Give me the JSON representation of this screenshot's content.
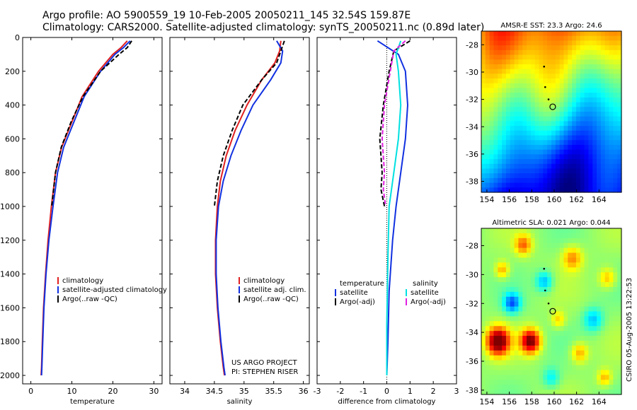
{
  "header": {
    "line1": "Argo profile: AO 5900559_19 10-Feb-2005 20050211_145 32.54S 159.87E",
    "line2": "Climatology: CARS2000. Satellite-adjusted climatology: synTS_20050211.nc (0.89d later)"
  },
  "stamp": "CSIRO 05-Aug-2005 13:22:53",
  "colors": {
    "climatology": "#e02020",
    "satellite": "#1030e0",
    "argo": "#000000",
    "cyan": "#00e0e0",
    "magenta": "#e020e0"
  },
  "chart_data": [
    {
      "type": "line",
      "name": "temperature-panel",
      "xlabel": "temperature",
      "ylabel": "",
      "xlim": [
        -2,
        32
      ],
      "ylim": [
        2050,
        0
      ],
      "xticks": [
        0,
        10,
        20,
        30
      ],
      "yticks": [
        0,
        200,
        400,
        600,
        800,
        1000,
        1200,
        1400,
        1600,
        1800,
        2000
      ],
      "legend": [
        "climatology",
        "satellite-adjusted climatology",
        "Argo(..raw -QC)"
      ],
      "series": [
        {
          "name": "climatology",
          "color": "#e02020",
          "dashed": false,
          "x": [
            23.5,
            22,
            20,
            16.5,
            12.5,
            10,
            7.5,
            6,
            5,
            4.2,
            3.6,
            3.1,
            2.8,
            2.6,
            2.5
          ],
          "y": [
            20,
            60,
            100,
            200,
            350,
            500,
            650,
            800,
            1000,
            1200,
            1400,
            1600,
            1800,
            1950,
            2000
          ]
        },
        {
          "name": "satellite-adjusted climatology",
          "color": "#1030e0",
          "dashed": false,
          "x": [
            24.2,
            22.6,
            20.5,
            17,
            13,
            10.5,
            8,
            6.5,
            5.4,
            4.4,
            3.7,
            3.2,
            2.9,
            2.7,
            2.6
          ],
          "y": [
            20,
            60,
            100,
            200,
            350,
            500,
            650,
            800,
            1000,
            1200,
            1400,
            1600,
            1800,
            1950,
            2000
          ]
        },
        {
          "name": "Argo(..raw -QC)",
          "color": "#000000",
          "dashed": true,
          "x": [
            24.6,
            23.5,
            21.5,
            17,
            12.7,
            9.8,
            7.4,
            6,
            5.1
          ],
          "y": [
            20,
            60,
            100,
            200,
            350,
            500,
            650,
            800,
            1000
          ]
        }
      ]
    },
    {
      "type": "line",
      "name": "salinity-panel",
      "xlabel": "salinity",
      "ylabel": "",
      "xlim": [
        33.75,
        36.1
      ],
      "ylim": [
        2050,
        0
      ],
      "xticks": [
        34,
        34.5,
        35,
        35.5,
        36
      ],
      "xticklabels": [
        "34",
        "34.5",
        "35",
        "35.5",
        "36"
      ],
      "legend": [
        "climatology",
        "satellite adj. clim.",
        "Argo(..raw -QC)"
      ],
      "annotation": [
        "US ARGO PROJECT",
        "PI: STEPHEN RISER"
      ],
      "series": [
        {
          "name": "climatology",
          "color": "#e02020",
          "dashed": false,
          "x": [
            35.62,
            35.6,
            35.52,
            35.3,
            35.05,
            34.85,
            34.7,
            34.6,
            34.55,
            34.52,
            34.52,
            34.55,
            34.6,
            34.65,
            34.67
          ],
          "y": [
            20,
            80,
            150,
            250,
            400,
            550,
            700,
            850,
            1000,
            1200,
            1400,
            1600,
            1800,
            1950,
            2000
          ]
        },
        {
          "name": "satellite adj. clim.",
          "color": "#1030e0",
          "dashed": false,
          "x": [
            35.55,
            35.65,
            35.62,
            35.45,
            35.15,
            34.95,
            34.78,
            34.65,
            34.57,
            34.53,
            34.53,
            34.56,
            34.61,
            34.66,
            34.68
          ],
          "y": [
            20,
            80,
            150,
            250,
            400,
            550,
            700,
            850,
            1000,
            1200,
            1400,
            1600,
            1800,
            1950,
            2000
          ]
        },
        {
          "name": "Argo(..raw -QC)",
          "color": "#000000",
          "dashed": true,
          "x": [
            35.68,
            35.62,
            35.55,
            35.3,
            34.98,
            34.8,
            34.65,
            34.55,
            34.5
          ],
          "y": [
            20,
            80,
            150,
            250,
            400,
            550,
            700,
            850,
            1000
          ]
        }
      ]
    },
    {
      "type": "line",
      "name": "difference-panel",
      "xlabel": "difference from climatology",
      "ylabel": "",
      "xlim": [
        -3,
        3
      ],
      "ylim": [
        2050,
        0
      ],
      "xticks": [
        -3,
        -2,
        -1,
        0,
        1,
        2,
        3
      ],
      "legend_left_title": "temperature",
      "legend_left": [
        "satellite",
        "Argo(-adj)"
      ],
      "legend_right_title": "salinity",
      "legend_right": [
        "satellite",
        "Argo(-adj)"
      ],
      "series": [
        {
          "name": "temperature satellite",
          "color": "#1030e0",
          "dashed": false,
          "x": [
            -0.4,
            0.5,
            0.8,
            0.9,
            0.8,
            0.6,
            0.4,
            0.25,
            0.1,
            0.05,
            0
          ],
          "y": [
            20,
            100,
            200,
            400,
            600,
            800,
            1000,
            1200,
            1500,
            1800,
            2000
          ]
        },
        {
          "name": "temperature Argo(-adj)",
          "color": "#000000",
          "dashed": true,
          "x": [
            1.0,
            0.3,
            0.1,
            -0.15,
            -0.3,
            -0.2,
            -0.25,
            -0.1
          ],
          "y": [
            20,
            80,
            200,
            400,
            600,
            800,
            900,
            1000
          ]
        },
        {
          "name": "salinity satellite",
          "color": "#00e0e0",
          "dashed": false,
          "x": [
            0.6,
            0.4,
            0.5,
            0.6,
            0.5,
            0.3,
            0.1,
            0.05,
            0,
            0
          ],
          "y": [
            20,
            100,
            200,
            400,
            600,
            800,
            1000,
            1300,
            1700,
            2000
          ]
        },
        {
          "name": "salinity Argo(-adj)",
          "color": "#e020e0",
          "dashed": true,
          "x": [
            0.8,
            0.3,
            0.15,
            -0.1,
            -0.2,
            -0.1,
            -0.15,
            -0.05
          ],
          "y": [
            20,
            80,
            200,
            400,
            600,
            800,
            900,
            1000
          ]
        }
      ]
    },
    {
      "type": "heatmap",
      "name": "sst-map",
      "title": "AMSR-E SST: 23.3 Argo: 24.6",
      "xlim": [
        153.5,
        166
      ],
      "ylim": [
        -38.8,
        -27
      ],
      "xticks": [
        154,
        156,
        158,
        160,
        162,
        164
      ],
      "yticks": [
        -28,
        -30,
        -32,
        -34,
        -36,
        -38
      ],
      "marker": {
        "lon": 159.87,
        "lat": -32.54
      }
    },
    {
      "type": "heatmap",
      "name": "sla-map",
      "title": "Altimetric SLA: 0.021 Argo: 0.044",
      "xlim": [
        153.5,
        166
      ],
      "ylim": [
        -38.3,
        -26.8
      ],
      "xticks": [
        154,
        156,
        158,
        160,
        162,
        164
      ],
      "yticks": [
        -28,
        -30,
        -32,
        -34,
        -36,
        -38
      ],
      "marker": {
        "lon": 159.87,
        "lat": -32.54
      }
    }
  ]
}
